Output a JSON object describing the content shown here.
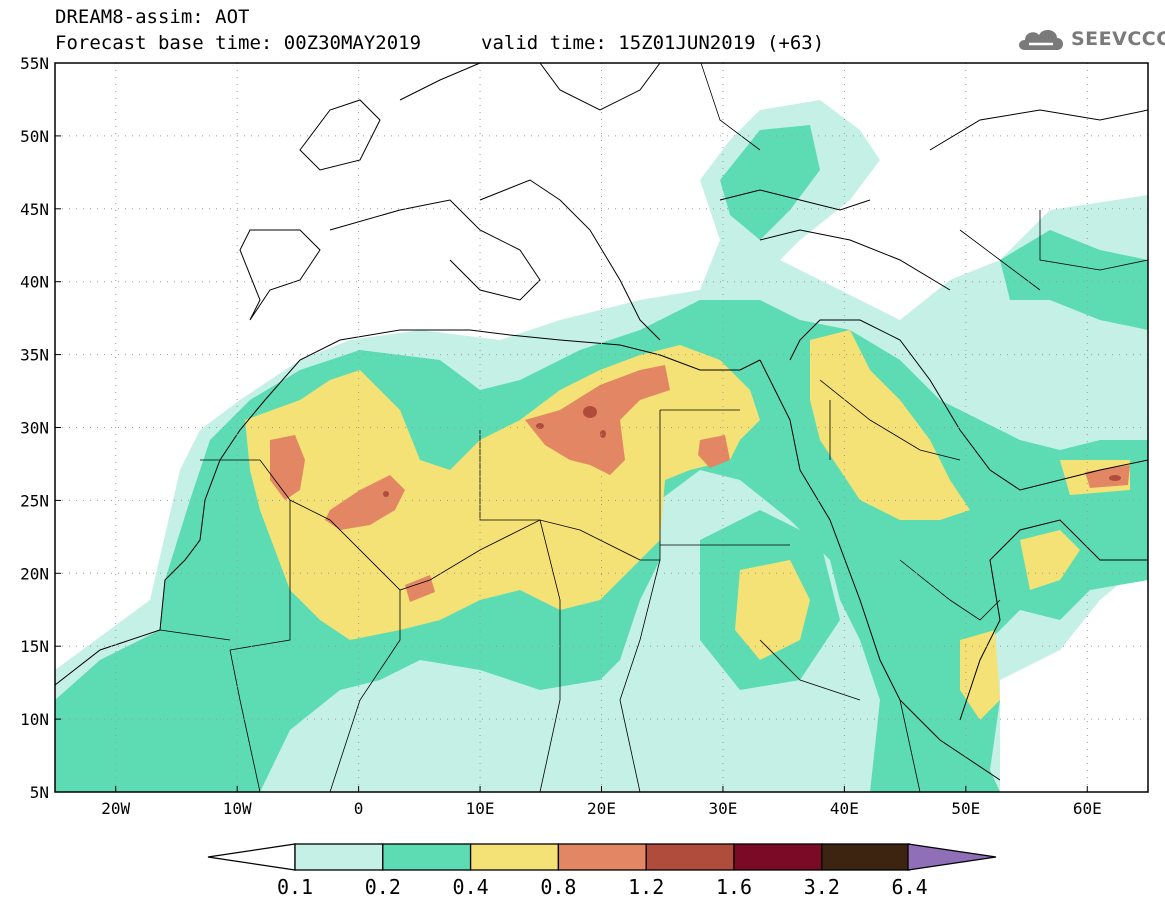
{
  "header": {
    "title_line1": "DREAM8-assim: AOT",
    "title_line2": "Forecast base time: 00Z30MAY2019",
    "valid_time": "valid time: 15Z01JUN2019 (+63)",
    "logo_text": "SEEVCCC",
    "logo_icon": "cloud-icon"
  },
  "map": {
    "lon_range": [
      -25,
      65
    ],
    "lat_range": [
      5,
      55
    ],
    "lat_ticks": [
      "55N",
      "50N",
      "45N",
      "40N",
      "35N",
      "30N",
      "25N",
      "20N",
      "15N",
      "10N",
      "5N"
    ],
    "lon_ticks": [
      "20W",
      "10W",
      "0",
      "10E",
      "20E",
      "30E",
      "40E",
      "50E",
      "60E"
    ]
  },
  "legend": {
    "levels": [
      "0.1",
      "0.2",
      "0.4",
      "0.8",
      "1.2",
      "1.6",
      "3.2",
      "6.4"
    ],
    "colors": [
      "#ffffff",
      "#c4f0e6",
      "#5ddcb4",
      "#f5e276",
      "#e28664",
      "#b04c3c",
      "#7a0a26",
      "#3c2410",
      "#8f6fb8"
    ]
  },
  "colors": {
    "lev1": "#c4f0e6",
    "lev2": "#5ddcb4",
    "lev3": "#f5e276",
    "lev4": "#e28664",
    "lev5": "#b04c3c"
  }
}
